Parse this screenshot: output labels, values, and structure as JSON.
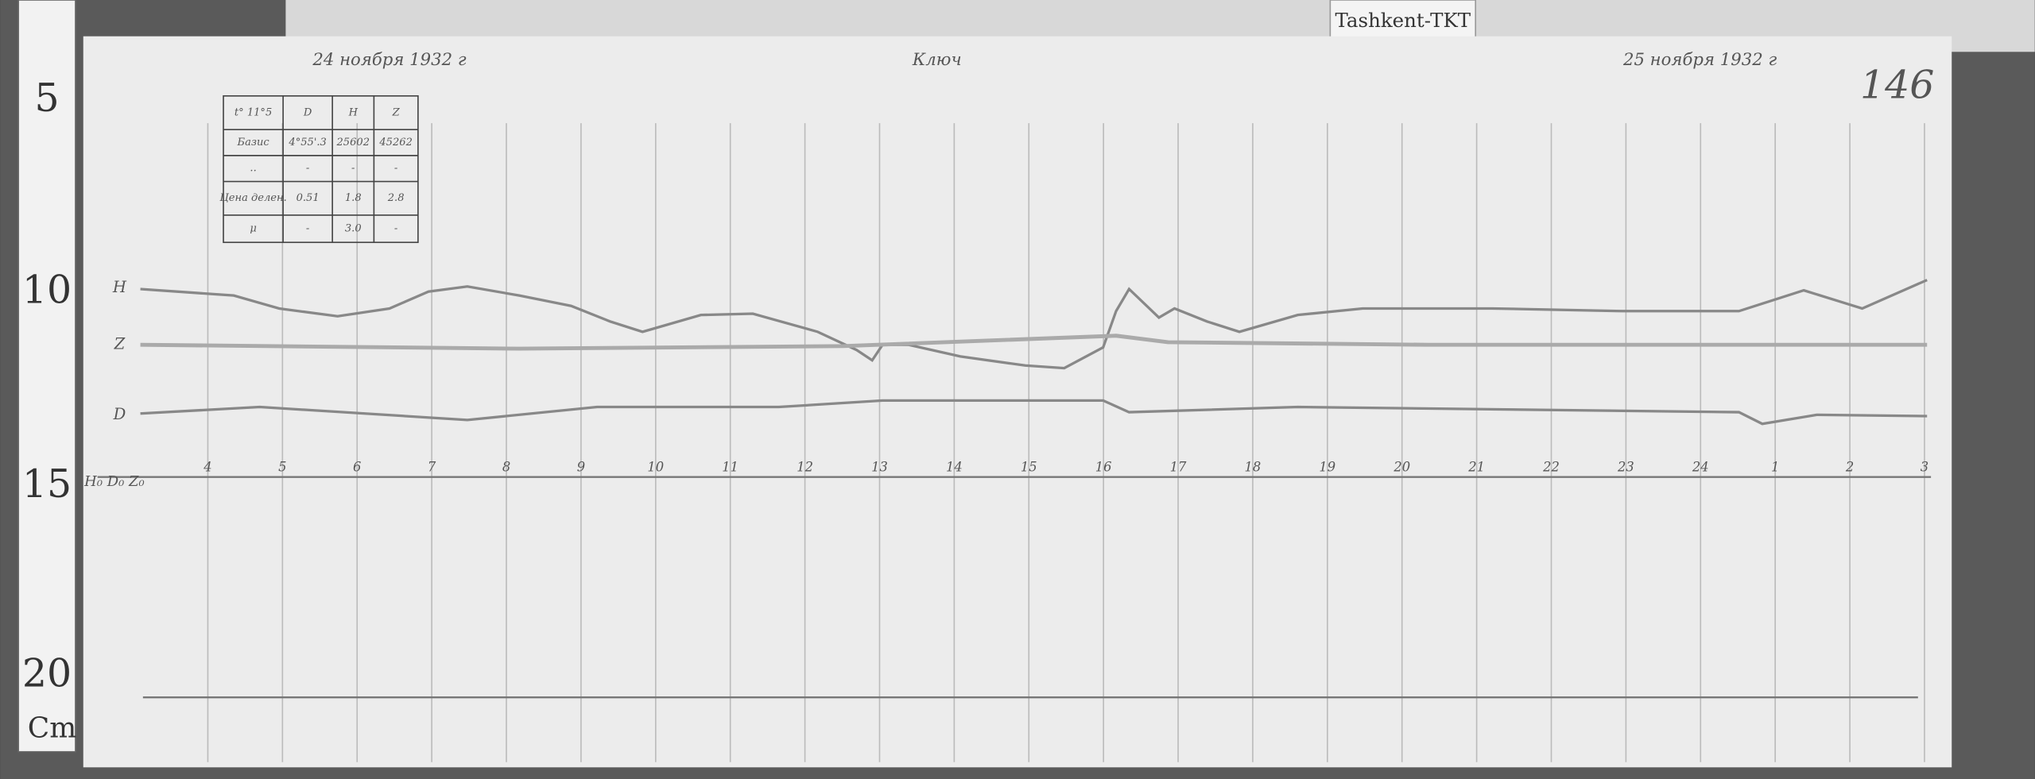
{
  "tag": "Tashkent-TKT",
  "ruler": {
    "marks": [
      "5",
      "10",
      "15",
      "20"
    ],
    "unit": "Cm"
  },
  "header": {
    "left": "24 ноября 1932 г",
    "center": "Ключ",
    "right": "25 ноября 1932 г",
    "page": "146"
  },
  "table": {
    "header": [
      "t° 11°5",
      "D",
      "H",
      "Z"
    ],
    "rows": [
      [
        "Базис",
        "4°55'.3",
        "25602",
        "45262"
      ],
      [
        "..",
        "-",
        "-",
        "-"
      ],
      [
        "Цена делен.",
        "0.51",
        "1.8",
        "2.8"
      ],
      [
        "μ",
        "-",
        "3.0",
        "-"
      ]
    ]
  },
  "traces": [
    "H",
    "Z",
    "D"
  ],
  "baseline_label": "H₀ D₀ Z₀",
  "hours": [
    "4",
    "5",
    "6",
    "7",
    "8",
    "9",
    "10",
    "11",
    "12",
    "13",
    "14",
    "15",
    "16",
    "17",
    "18",
    "19",
    "20",
    "21",
    "22",
    "23",
    "24",
    "1",
    "2",
    "3"
  ]
}
